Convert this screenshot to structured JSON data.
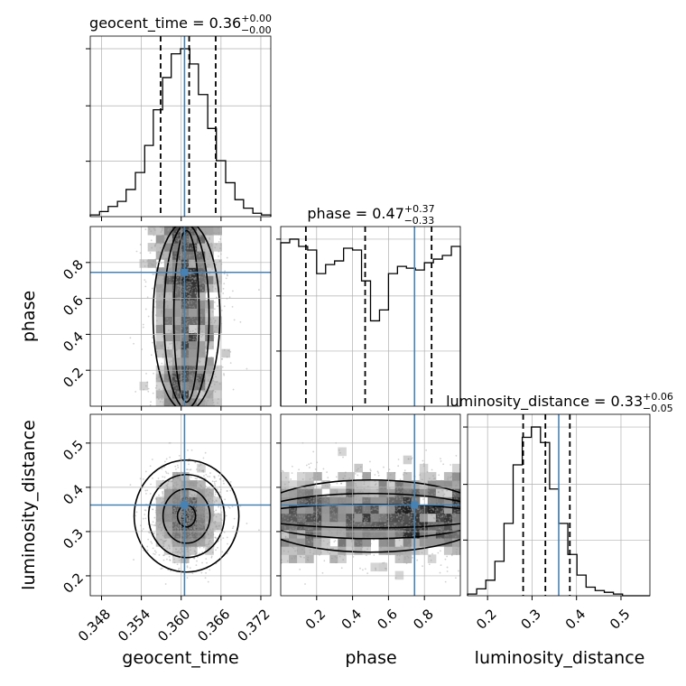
{
  "chart_data": {
    "type": "corner",
    "parameters": [
      "geocent_time",
      "phase",
      "luminosity_distance"
    ],
    "axis_labels": [
      "geocent_time",
      "phase",
      "luminosity_distance"
    ],
    "titles": [
      {
        "param": "geocent_time",
        "text": "geocent_time = 0.36",
        "sup": "+0.00",
        "sub": "−0.00"
      },
      {
        "param": "phase",
        "text": "phase = 0.47",
        "sup": "+0.37",
        "sub": "−0.33"
      },
      {
        "param": "luminosity_distance",
        "text": "luminosity_distance = 0.33",
        "sup": "+0.06",
        "sub": "−0.05"
      }
    ],
    "ranges": {
      "geocent_time": [
        0.3463,
        0.3735
      ],
      "phase": [
        0.0,
        1.0
      ],
      "luminosity_distance": [
        0.155,
        0.565
      ]
    },
    "ticks": {
      "geocent_time": [
        0.348,
        0.354,
        0.36,
        0.366,
        0.372
      ],
      "phase": [
        0.2,
        0.4,
        0.6,
        0.8
      ],
      "luminosity_distance": [
        0.2,
        0.3,
        0.4,
        0.5
      ]
    },
    "tick_labels": {
      "geocent_time": [
        "0.348",
        "0.354",
        "0.360",
        "0.366",
        "0.372"
      ],
      "phase": [
        "0.2",
        "0.4",
        "0.6",
        "0.8"
      ],
      "luminosity_distance": [
        "0.2",
        "0.3",
        "0.4",
        "0.5"
      ]
    },
    "truths": {
      "geocent_time": 0.3605,
      "phase": 0.745,
      "luminosity_distance": 0.36
    },
    "quantiles": {
      "geocent_time": [
        0.3569,
        0.3612,
        0.3652
      ],
      "phase": [
        0.14,
        0.47,
        0.84
      ],
      "luminosity_distance": [
        0.28,
        0.33,
        0.385
      ]
    },
    "histograms": {
      "geocent_time": {
        "edges": [
          0.3463,
          0.3477,
          0.349,
          0.3504,
          0.3517,
          0.3531,
          0.3545,
          0.3558,
          0.3572,
          0.3585,
          0.3599,
          0.3613,
          0.3626,
          0.364,
          0.3653,
          0.3667,
          0.3681,
          0.3694,
          0.3708,
          0.3721,
          0.3735
        ],
        "counts": [
          1,
          3,
          6,
          9,
          16,
          26,
          42,
          63,
          82,
          96,
          99,
          90,
          72,
          52,
          33,
          20,
          10,
          5,
          2,
          1
        ]
      },
      "phase": {
        "edges": [
          0.0,
          0.05,
          0.1,
          0.15,
          0.2,
          0.25,
          0.3,
          0.35,
          0.4,
          0.45,
          0.5,
          0.55,
          0.6,
          0.65,
          0.7,
          0.75,
          0.8,
          0.85,
          0.9,
          0.95,
          1.0
        ],
        "counts": [
          90,
          92,
          88,
          86,
          73,
          78,
          80,
          87,
          86,
          69,
          47,
          53,
          73,
          77,
          76,
          75,
          79,
          81,
          83,
          88
        ]
      },
      "luminosity_distance": {
        "edges": [
          0.155,
          0.1755,
          0.196,
          0.2165,
          0.237,
          0.2575,
          0.278,
          0.2985,
          0.319,
          0.3395,
          0.36,
          0.3805,
          0.401,
          0.4215,
          0.442,
          0.4625,
          0.483,
          0.5035,
          0.524,
          0.5445,
          0.565
        ],
        "counts": [
          1,
          4,
          9,
          20,
          42,
          76,
          92,
          98,
          89,
          62,
          42,
          24,
          12,
          5,
          3,
          2,
          1,
          0,
          0,
          0
        ]
      }
    },
    "grid": true
  }
}
